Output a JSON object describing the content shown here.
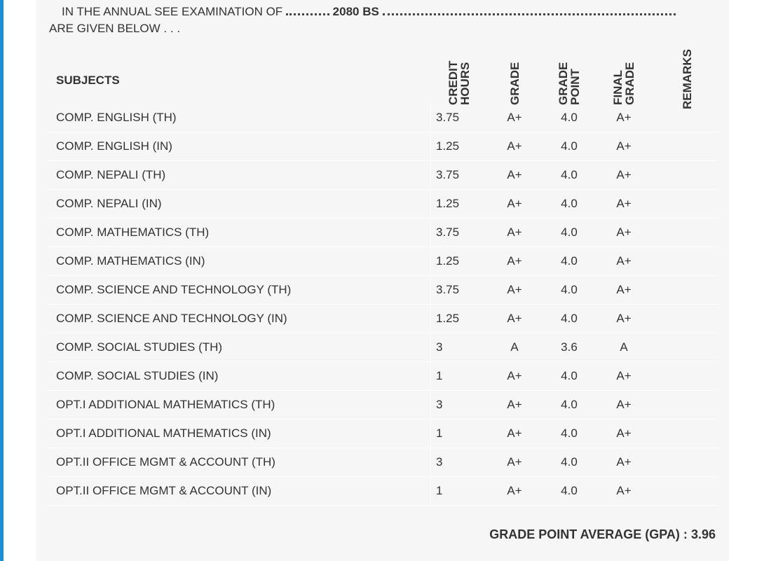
{
  "intro": {
    "prefix": "IN THE ANNUAL SEE EXAMINATION OF",
    "year": "2080 BS",
    "line2": "ARE GIVEN BELOW . . ."
  },
  "table": {
    "headers": [
      "SUBJECTS",
      "CREDIT HOURS",
      "GRADE",
      "GRADE POINT",
      "FINAL GRADE",
      "REMARKS"
    ],
    "rows": [
      [
        "COMP. ENGLISH (TH)",
        "3.75",
        "A+",
        "4.0",
        "A+"
      ],
      [
        "COMP. ENGLISH (IN)",
        "1.25",
        "A+",
        "4.0",
        "A+"
      ],
      [
        "COMP. NEPALI (TH)",
        "3.75",
        "A+",
        "4.0",
        "A+"
      ],
      [
        "COMP. NEPALI (IN)",
        "1.25",
        "A+",
        "4.0",
        "A+"
      ],
      [
        "COMP. MATHEMATICS (TH)",
        "3.75",
        "A+",
        "4.0",
        "A+"
      ],
      [
        "COMP. MATHEMATICS (IN)",
        "1.25",
        "A+",
        "4.0",
        "A+"
      ],
      [
        "COMP. SCIENCE AND TECHNOLOGY (TH)",
        "3.75",
        "A+",
        "4.0",
        "A+"
      ],
      [
        "COMP. SCIENCE AND TECHNOLOGY (IN)",
        "1.25",
        "A+",
        "4.0",
        "A+"
      ],
      [
        "COMP. SOCIAL STUDIES (TH)",
        "3",
        "A",
        "3.6",
        "A"
      ],
      [
        "COMP. SOCIAL STUDIES (IN)",
        "1",
        "A+",
        "4.0",
        "A+"
      ],
      [
        "OPT.I ADDITIONAL MATHEMATICS (TH)",
        "3",
        "A+",
        "4.0",
        "A+"
      ],
      [
        "OPT.I ADDITIONAL MATHEMATICS (IN)",
        "1",
        "A+",
        "4.0",
        "A+"
      ],
      [
        "OPT.II OFFICE MGMT & ACCOUNT (TH)",
        "3",
        "A+",
        "4.0",
        "A+"
      ],
      [
        "OPT.II OFFICE MGMT & ACCOUNT (IN)",
        "1",
        "A+",
        "4.0",
        "A+"
      ]
    ]
  },
  "footer": {
    "label": "GRADE POINT AVERAGE (GPA) :",
    "value": "3.96"
  }
}
